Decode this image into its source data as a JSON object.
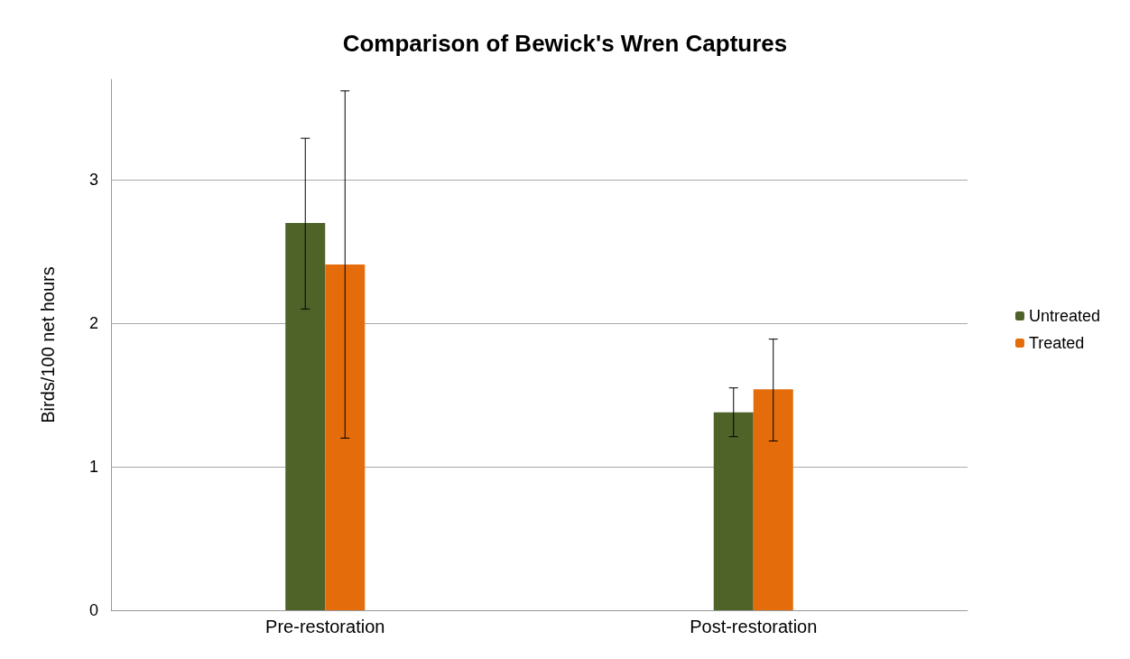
{
  "chart_data": {
    "type": "bar",
    "title": "Comparison of Bewick's Wren Captures",
    "ylabel": "Birds/100 net hours",
    "categories": [
      "Pre-restoration",
      "Post-restoration"
    ],
    "series": [
      {
        "name": "Untreated",
        "color": "#4f6228",
        "values": [
          2.7,
          1.38
        ],
        "errors": [
          [
            2.1,
            3.29
          ],
          [
            1.21,
            1.55
          ]
        ]
      },
      {
        "name": "Treated",
        "color": "#e46c0a",
        "values": [
          2.41,
          1.54
        ],
        "errors": [
          [
            1.2,
            3.62
          ],
          [
            1.18,
            1.89
          ]
        ]
      }
    ],
    "ylim": [
      0,
      3.7
    ],
    "yticks": [
      0,
      1,
      2,
      3
    ],
    "grid": "y",
    "legend": "right"
  }
}
